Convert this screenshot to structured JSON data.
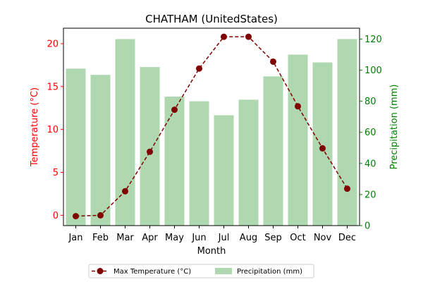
{
  "chart_data": {
    "type": "bar+line",
    "title": "CHATHAM (UnitedStates)",
    "xlabel": "Month",
    "ylabel_left": "Temperature (°C)",
    "ylabel_right": "Precipitation (mm)",
    "categories": [
      "Jan",
      "Feb",
      "Mar",
      "Apr",
      "May",
      "Jun",
      "Jul",
      "Aug",
      "Sep",
      "Oct",
      "Nov",
      "Dec"
    ],
    "ylim_left": [
      -1.2,
      21.8
    ],
    "ylim_right": [
      0,
      127
    ],
    "yticks_left": [
      0,
      5,
      10,
      15,
      20
    ],
    "yticks_right": [
      0,
      20,
      40,
      60,
      80,
      100,
      120
    ],
    "grid": false,
    "legend_position": "below",
    "series": [
      {
        "name": "Max Temperature (°C)",
        "kind": "line",
        "axis": "left",
        "color": "#800000",
        "values": [
          -0.1,
          0.0,
          2.8,
          7.4,
          12.3,
          17.1,
          20.8,
          20.8,
          17.9,
          12.7,
          7.8,
          3.1
        ]
      },
      {
        "name": "Precipitation (mm)",
        "kind": "bar",
        "axis": "right",
        "color": "#b0d8b0",
        "values": [
          101,
          97,
          120,
          102,
          83,
          80,
          71,
          81,
          96,
          110,
          105,
          120
        ]
      }
    ],
    "left_axis_color": "#ff0000",
    "right_axis_color": "#008000"
  }
}
